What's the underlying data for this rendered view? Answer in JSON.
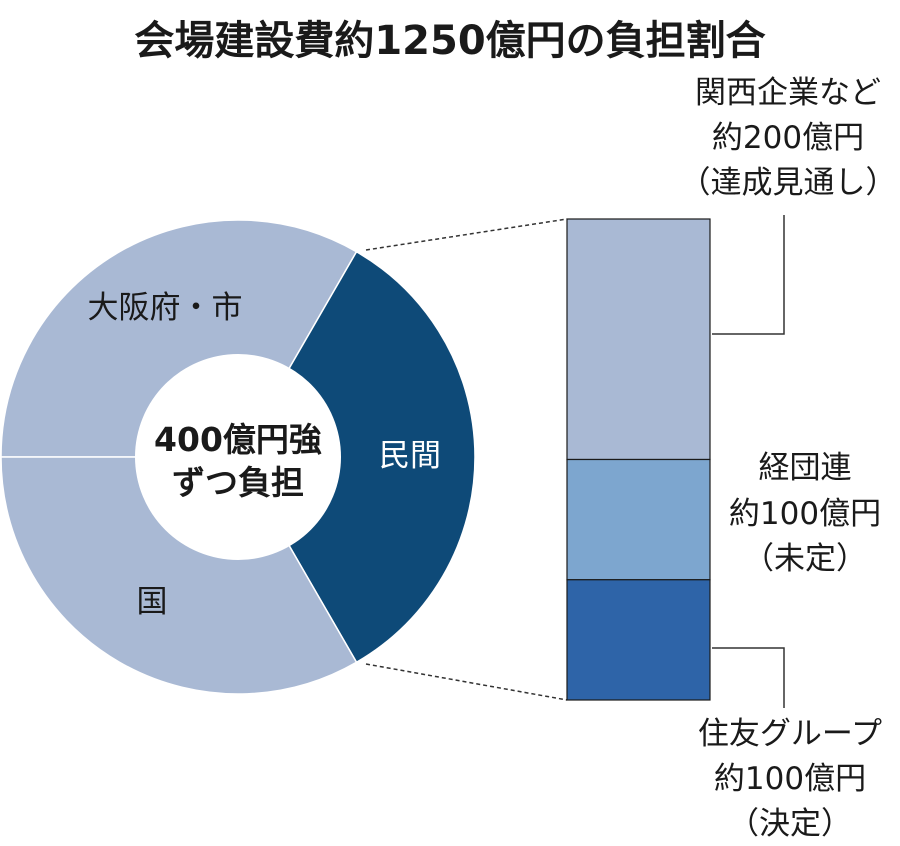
{
  "chart_data": [
    {
      "type": "pie",
      "title": "会場建設費約1250億円の負担割合",
      "center_label": [
        "400億円強",
        "ずつ負担"
      ],
      "slices": [
        {
          "label": "大阪府・市",
          "value": 400,
          "color": "#a9b9d4"
        },
        {
          "label": "民間",
          "value": 400,
          "color": "#0e4a78"
        },
        {
          "label": "国",
          "value": 400,
          "color": "#a9b9d4"
        }
      ]
    },
    {
      "type": "bar",
      "stacked": true,
      "breakdown_of": "民間",
      "segments": [
        {
          "label_lines": [
            "関西企業など",
            "約200億円",
            "（達成見通し）"
          ],
          "value": 200,
          "color": "#a9b9d4"
        },
        {
          "label_lines": [
            "経団連",
            "約100億円",
            "（未定）"
          ],
          "value": 100,
          "color": "#7da6cf"
        },
        {
          "label_lines": [
            "住友グループ",
            "約100億円",
            "（決定）"
          ],
          "value": 100,
          "color": "#2e64a8"
        }
      ]
    }
  ]
}
